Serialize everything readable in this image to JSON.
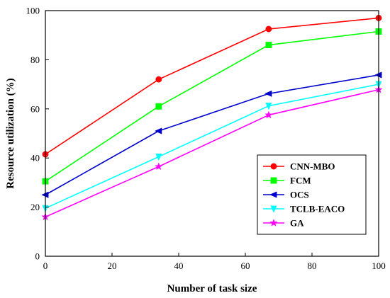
{
  "chart_data": {
    "type": "line",
    "title": "",
    "xlabel": "Number of task size",
    "ylabel": "Resource utilization (%)",
    "xlim": [
      0,
      100
    ],
    "ylim": [
      0,
      100
    ],
    "xticks": [
      0,
      20,
      40,
      60,
      80,
      100
    ],
    "yticks": [
      0,
      20,
      40,
      60,
      80,
      100
    ],
    "grid": false,
    "legend_position": "bottom-right",
    "x": [
      0,
      34,
      67,
      100
    ],
    "series": [
      {
        "name": "CNN-MBO",
        "values": [
          41.5,
          72,
          92.5,
          97
        ],
        "color": "#ff0000",
        "marker": "circle"
      },
      {
        "name": "FCM",
        "values": [
          30.5,
          61,
          86,
          91.5
        ],
        "color": "#00ff00",
        "marker": "square"
      },
      {
        "name": "OCS",
        "values": [
          25,
          51,
          66.2,
          73.8
        ],
        "color": "#0000cc",
        "marker": "triangle-left"
      },
      {
        "name": "TCLB-EACO",
        "values": [
          19.5,
          40.5,
          61.2,
          70
        ],
        "color": "#00ffff",
        "marker": "triangle-down"
      },
      {
        "name": "GA",
        "values": [
          16,
          36.5,
          57.5,
          67.8
        ],
        "color": "#ff00ff",
        "marker": "star"
      }
    ]
  }
}
